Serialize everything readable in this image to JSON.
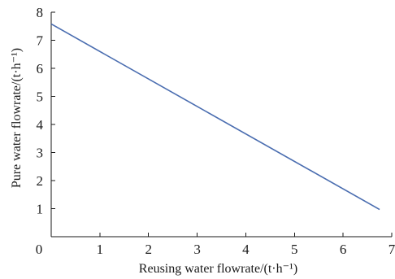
{
  "chart_data": {
    "type": "line",
    "title": "",
    "xlabel": "Reusing water flowrate/(t·h⁻¹)",
    "ylabel": "Pure water flowrate/(t·h⁻¹)",
    "xlim": [
      0,
      7
    ],
    "ylim": [
      0,
      8
    ],
    "xticks": [
      0,
      1,
      2,
      3,
      4,
      5,
      6,
      7
    ],
    "yticks": [
      1,
      2,
      3,
      4,
      5,
      6,
      7,
      8
    ],
    "grid": false,
    "series": [
      {
        "x": [
          0,
          6.75
        ],
        "y": [
          7.58,
          0.97
        ],
        "color": "#4a6db0"
      }
    ]
  }
}
